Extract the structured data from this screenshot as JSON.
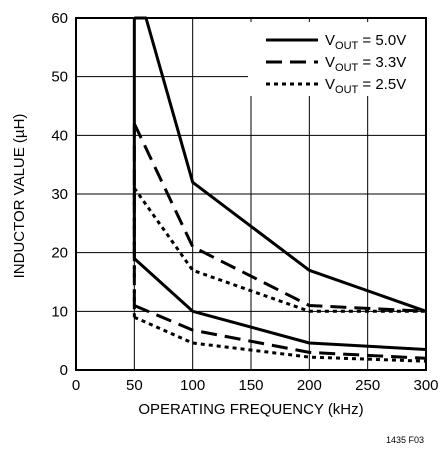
{
  "chart_data": {
    "type": "line",
    "title": "",
    "xlabel": "OPERATING FREQUENCY (kHz)",
    "ylabel": "INDUCTOR VALUE (µH)",
    "xlim": [
      0,
      300
    ],
    "ylim": [
      0,
      60
    ],
    "xticks": [
      "0",
      "50",
      "100",
      "150",
      "200",
      "250",
      "300"
    ],
    "yticks": [
      "0",
      "10",
      "20",
      "30",
      "40",
      "50",
      "60"
    ],
    "grid": true,
    "legend_position": "top-right",
    "figure_code": "1435 F03",
    "series": [
      {
        "name": "VOUT = 5.0V",
        "legend": {
          "main": "V",
          "sub": "OUT",
          "rest": " = 5.0V"
        },
        "style": "solid",
        "upper": [
          [
            50,
            60
          ],
          [
            60,
            60
          ],
          [
            100,
            32
          ],
          [
            200,
            17
          ],
          [
            300,
            10
          ]
        ],
        "lower": [
          [
            50,
            19
          ],
          [
            100,
            10
          ],
          [
            200,
            4.6
          ],
          [
            300,
            3.5
          ]
        ]
      },
      {
        "name": "VOUT = 3.3V",
        "legend": {
          "main": "V",
          "sub": "OUT",
          "rest": " = 3.3V"
        },
        "style": "dashed",
        "upper": [
          [
            50,
            42
          ],
          [
            100,
            21
          ],
          [
            200,
            11
          ],
          [
            300,
            10
          ]
        ],
        "lower": [
          [
            50,
            11
          ],
          [
            100,
            6.8
          ],
          [
            200,
            3
          ],
          [
            300,
            2
          ]
        ]
      },
      {
        "name": "VOUT = 2.5V",
        "legend": {
          "main": "V",
          "sub": "OUT",
          "rest": " = 2.5V"
        },
        "style": "dotted",
        "upper": [
          [
            50,
            31
          ],
          [
            100,
            17
          ],
          [
            200,
            10
          ],
          [
            300,
            10
          ]
        ],
        "lower": [
          [
            50,
            9
          ],
          [
            100,
            4.6
          ],
          [
            200,
            2.2
          ],
          [
            300,
            1.5
          ]
        ]
      }
    ]
  }
}
